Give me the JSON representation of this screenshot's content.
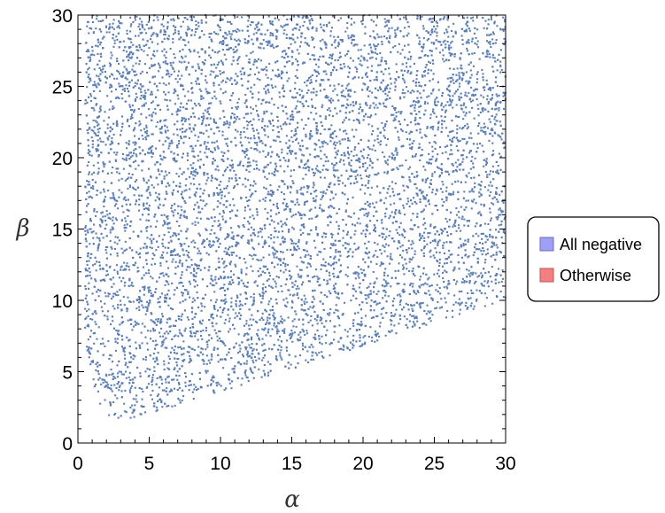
{
  "chart_data": {
    "type": "scatter",
    "title": "",
    "xlabel": "α",
    "ylabel": "β",
    "xlim": [
      0,
      30
    ],
    "ylim": [
      0,
      30
    ],
    "xticks": [
      "0",
      "5",
      "10",
      "15",
      "20",
      "25",
      "30"
    ],
    "yticks": [
      "0",
      "5",
      "10",
      "15",
      "20",
      "25",
      "30"
    ],
    "grid": false,
    "legend_position": "right",
    "series": [
      {
        "name": "All negative",
        "color": "#5a7fbf",
        "legend_color": "#9ea0f5",
        "region": {
          "x_range": [
            0,
            30
          ],
          "y_range": [
            0,
            30
          ],
          "lower_boundary": [
            [
              0.5,
              7
            ],
            [
              1.0,
              4.5
            ],
            [
              1.5,
              2.6
            ],
            [
              2.0,
              2.0
            ],
            [
              3.0,
              1.6
            ],
            [
              5.0,
              2.0
            ],
            [
              10.0,
              3.6
            ],
            [
              15.0,
              5.2
            ],
            [
              20.0,
              6.8
            ],
            [
              25.0,
              8.4
            ],
            [
              30.0,
              10.0
            ]
          ]
        }
      },
      {
        "name": "Otherwise",
        "color": "#f26d6d",
        "legend_color": "#f28080"
      }
    ]
  }
}
